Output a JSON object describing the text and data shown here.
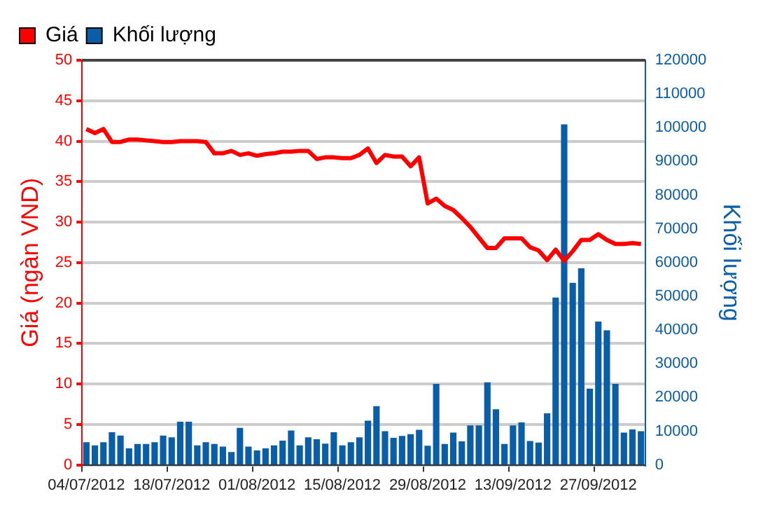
{
  "chart_data": {
    "type": "bar",
    "ylabel": "Giá (ngàn VND)",
    "y2label": "Khối lượng",
    "categories": [
      "04/07/2012",
      null,
      null,
      null,
      null,
      null,
      null,
      null,
      null,
      null,
      "18/07/2012",
      null,
      null,
      null,
      null,
      null,
      null,
      null,
      null,
      null,
      "01/08/2012",
      null,
      null,
      null,
      null,
      null,
      null,
      null,
      null,
      null,
      "15/08/2012",
      null,
      null,
      null,
      null,
      null,
      null,
      null,
      null,
      null,
      "29/08/2012",
      null,
      null,
      null,
      null,
      null,
      null,
      null,
      null,
      null,
      "13/09/2012",
      null,
      null,
      null,
      null,
      null,
      null,
      null,
      null,
      null,
      "27/09/2012",
      null,
      null,
      null,
      null,
      null
    ],
    "series": [
      {
        "name": "Giá",
        "type": "line",
        "color": "#ff0000",
        "axis": "y",
        "values": [
          41.5,
          41.0,
          41.5,
          39.9,
          39.9,
          40.2,
          40.2,
          40.1,
          40.0,
          39.9,
          39.9,
          40.0,
          40.0,
          40.0,
          39.9,
          38.5,
          38.5,
          38.8,
          38.3,
          38.5,
          38.2,
          38.4,
          38.5,
          38.7,
          38.7,
          38.8,
          38.8,
          37.8,
          38.0,
          38.0,
          37.9,
          37.9,
          38.3,
          39.1,
          37.3,
          38.3,
          38.1,
          38.1,
          36.9,
          38.0,
          32.3,
          32.9,
          32.0,
          31.5,
          30.5,
          29.4,
          28.1,
          26.8,
          26.8,
          28.0,
          28.0,
          28.0,
          26.9,
          26.5,
          25.3,
          26.6,
          25.2,
          26.4,
          27.8,
          27.8,
          28.5,
          27.8,
          27.3,
          27.3,
          27.4,
          27.3
        ]
      },
      {
        "name": "Khối lượng",
        "color": "#0a5ea8",
        "axis": "y2",
        "values": [
          6700,
          5800,
          6700,
          9700,
          8700,
          4900,
          6200,
          6200,
          6700,
          8700,
          8200,
          12800,
          12800,
          5800,
          6700,
          6200,
          5400,
          3800,
          11000,
          5400,
          4300,
          4900,
          5800,
          7200,
          10200,
          5800,
          8200,
          7600,
          6300,
          9700,
          5800,
          6700,
          8200,
          13100,
          17400,
          10000,
          8000,
          8600,
          9100,
          10400,
          5700,
          24000,
          6200,
          9600,
          7000,
          11700,
          11700,
          24500,
          16500,
          6200,
          11700,
          12600,
          7100,
          6600,
          15300,
          49600,
          101000,
          54000,
          58300,
          22600,
          42500,
          39900,
          24000,
          9600,
          10500,
          10000
        ]
      }
    ],
    "ylim": [
      0,
      50
    ],
    "yticks": [
      0,
      5,
      10,
      15,
      20,
      25,
      30,
      35,
      40,
      45,
      50
    ],
    "y2lim": [
      0,
      120000
    ],
    "y2ticks": [
      0,
      10000,
      20000,
      30000,
      40000,
      50000,
      60000,
      70000,
      80000,
      90000,
      100000,
      110000,
      120000
    ],
    "grid": "y",
    "legend": "top left",
    "marker": "none",
    "line_style": "solid"
  }
}
